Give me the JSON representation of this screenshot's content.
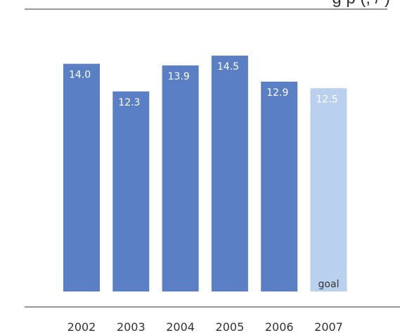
{
  "header": {
    "title_fragment": "g p   (, / )"
  },
  "chart_data": {
    "type": "bar",
    "categories": [
      "2002",
      "2003",
      "2004",
      "2005",
      "2006",
      "2007"
    ],
    "values": [
      14.0,
      12.3,
      13.9,
      14.5,
      12.9,
      12.5
    ],
    "value_labels": [
      "14.0",
      "12.3",
      "13.9",
      "14.5",
      "12.9",
      "12.5"
    ],
    "highlight_index": 5,
    "highlight_note": "goal",
    "colors": {
      "bar": "#5b7fc4",
      "goal_bar": "#b9d1ef",
      "label_text": "#ffffff",
      "axis": "#333333"
    },
    "ylim": [
      0,
      14.5
    ]
  }
}
